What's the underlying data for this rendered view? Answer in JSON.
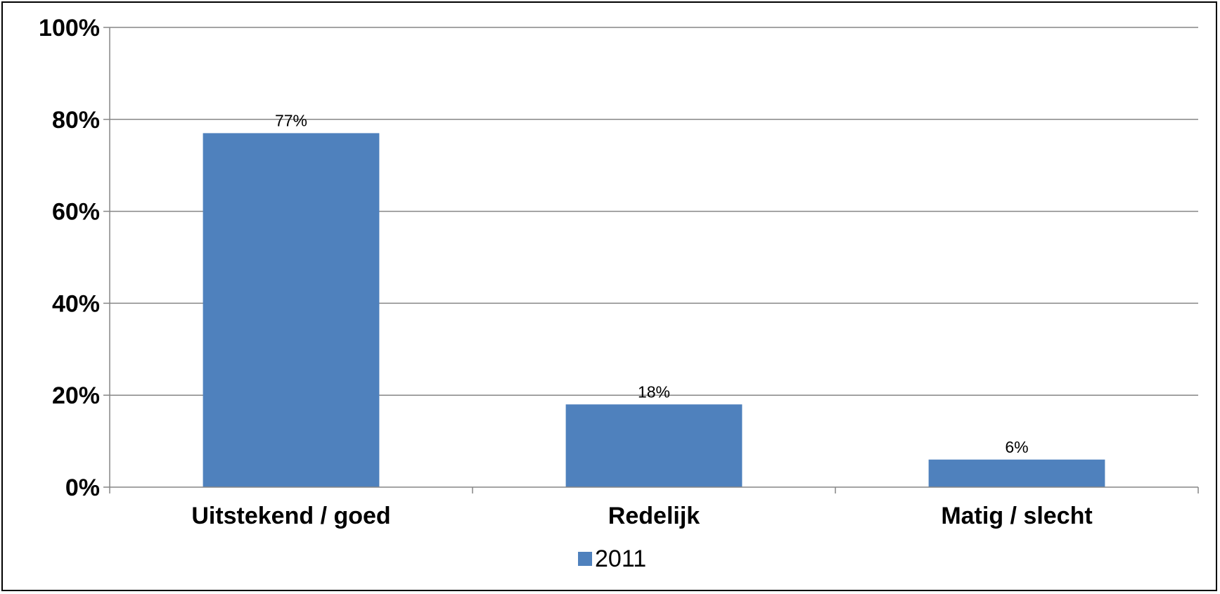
{
  "chart_data": {
    "type": "bar",
    "categories": [
      "Uitstekend / goed",
      "Redelijk",
      "Matig / slecht"
    ],
    "series": [
      {
        "name": "2011",
        "values": [
          77,
          18,
          6
        ],
        "labels": [
          "77%",
          "18%",
          "6%"
        ],
        "color": "#4F81BD"
      }
    ],
    "ylim": [
      0,
      100
    ],
    "yticks": [
      0,
      20,
      40,
      60,
      80,
      100
    ],
    "ytick_labels": [
      "0%",
      "20%",
      "40%",
      "60%",
      "80%",
      "100%"
    ],
    "grid": true,
    "legend": "bottom-center",
    "gridline_color": "#868686",
    "axis_color": "#868686"
  }
}
